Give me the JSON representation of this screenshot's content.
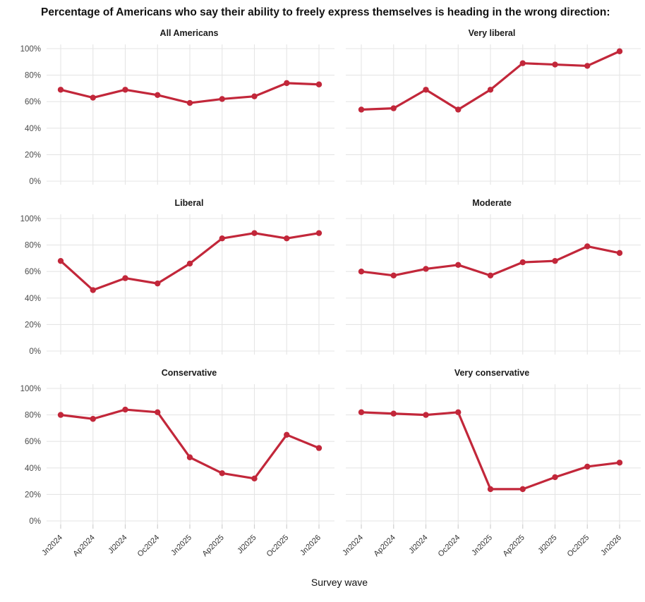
{
  "chart_data": {
    "type": "line",
    "title": "Percentage of Americans who say their ability to freely express themselves is heading in the wrong direction:",
    "xlabel": "Survey wave",
    "ylabel": "",
    "ylim": [
      0,
      100
    ],
    "yticks": [
      "0%",
      "20%",
      "40%",
      "60%",
      "80%",
      "100%"
    ],
    "ytick_values": [
      0,
      20,
      40,
      60,
      80,
      100
    ],
    "grid": "on",
    "legend": "none",
    "facet_layout": "2 columns x 3 rows",
    "categories": [
      "Jn2024",
      "Ap2024",
      "Jl2024",
      "Oc2024",
      "Jn2025",
      "Ap2025",
      "Jl2025",
      "Oc2025",
      "Jn2026"
    ],
    "series": [
      {
        "name": "All Americans",
        "values": [
          69,
          63,
          69,
          65,
          59,
          62,
          64,
          74,
          73
        ]
      },
      {
        "name": "Very liberal",
        "values": [
          54,
          55,
          69,
          54,
          69,
          89,
          88,
          87,
          98
        ]
      },
      {
        "name": "Liberal",
        "values": [
          68,
          46,
          55,
          51,
          66,
          85,
          89,
          85,
          89
        ]
      },
      {
        "name": "Moderate",
        "values": [
          60,
          57,
          62,
          65,
          57,
          67,
          68,
          79,
          74
        ]
      },
      {
        "name": "Conservative",
        "values": [
          80,
          77,
          84,
          82,
          48,
          36,
          32,
          65,
          55
        ]
      },
      {
        "name": "Very conservative",
        "values": [
          82,
          81,
          80,
          82,
          24,
          24,
          33,
          41,
          44
        ]
      }
    ],
    "colors": {
      "line": "#c2273a",
      "grid": "#e5e5e5",
      "axis_text": "#4a4a4a",
      "tick_mark": "#cfcfcf",
      "background": "#ffffff"
    }
  }
}
